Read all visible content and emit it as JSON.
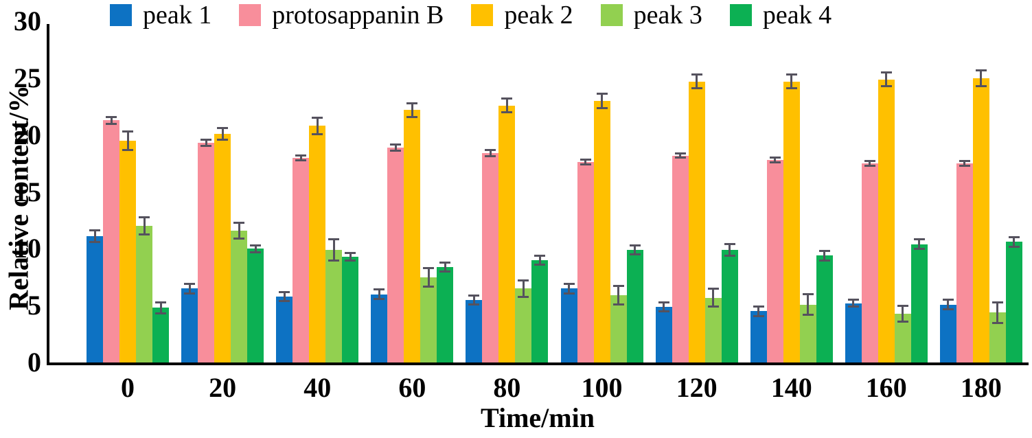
{
  "chart_data": {
    "type": "bar",
    "title": "",
    "xlabel": "Time/min",
    "ylabel": "Relative content/%",
    "categories": [
      "0",
      "20",
      "40",
      "60",
      "80",
      "100",
      "120",
      "140",
      "160",
      "180"
    ],
    "yticks": [
      0,
      5,
      10,
      15,
      20,
      25,
      30
    ],
    "ylim": [
      0,
      30
    ],
    "grid": false,
    "legend_position": "top",
    "bar_unit": "percent",
    "error_bar_color": "#55525e",
    "axis_color": "#000000",
    "series": [
      {
        "name": "peak 1",
        "color": "#0d72c3",
        "values": [
          11.1,
          6.5,
          5.8,
          6.0,
          5.5,
          6.5,
          4.9,
          4.5,
          5.2,
          5.1
        ],
        "errors": [
          0.6,
          0.5,
          0.5,
          0.5,
          0.5,
          0.5,
          0.5,
          0.5,
          0.4,
          0.5
        ]
      },
      {
        "name": "protosappanin B",
        "color": "#f88e9b",
        "values": [
          21.3,
          19.3,
          18.0,
          18.9,
          18.4,
          17.6,
          18.2,
          17.8,
          17.5,
          17.5
        ],
        "errors": [
          0.4,
          0.35,
          0.3,
          0.35,
          0.35,
          0.3,
          0.3,
          0.3,
          0.3,
          0.3
        ]
      },
      {
        "name": "peak 2",
        "color": "#ffc000",
        "values": [
          19.5,
          20.1,
          20.8,
          22.2,
          22.6,
          23.0,
          24.7,
          24.7,
          24.9,
          25.0
        ],
        "errors": [
          0.9,
          0.6,
          0.8,
          0.7,
          0.7,
          0.7,
          0.7,
          0.7,
          0.7,
          0.8
        ]
      },
      {
        "name": "peak 3",
        "color": "#92d050",
        "values": [
          12.0,
          11.6,
          9.9,
          7.5,
          6.5,
          5.9,
          5.7,
          5.1,
          4.3,
          4.4
        ],
        "errors": [
          0.85,
          0.8,
          1.0,
          0.9,
          0.8,
          0.9,
          0.9,
          1.0,
          0.8,
          1.0
        ]
      },
      {
        "name": "peak 4",
        "color": "#0cb053",
        "values": [
          4.8,
          10.0,
          9.3,
          8.4,
          9.0,
          9.9,
          9.9,
          9.4,
          10.4,
          10.6
        ],
        "errors": [
          0.6,
          0.4,
          0.4,
          0.5,
          0.5,
          0.5,
          0.6,
          0.5,
          0.5,
          0.5
        ]
      }
    ]
  }
}
